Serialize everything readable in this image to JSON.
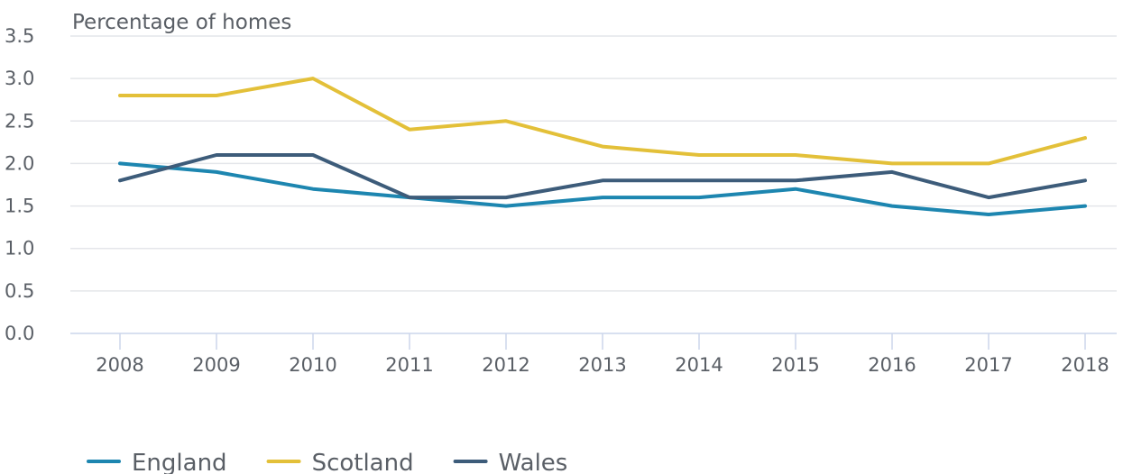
{
  "chart_data": {
    "type": "line",
    "title": "",
    "xlabel": "",
    "ylabel": "Percentage of homes",
    "x": [
      "2008",
      "2009",
      "2010",
      "2011",
      "2012",
      "2013",
      "2014",
      "2015",
      "2016",
      "2017",
      "2018"
    ],
    "ylim": [
      0,
      3.5
    ],
    "yticks": [
      "0.0",
      "0.5",
      "1.0",
      "1.5",
      "2.0",
      "2.5",
      "3.0",
      "3.5"
    ],
    "grid": true,
    "legend_position": "bottom-left",
    "series": [
      {
        "name": "England",
        "color": "#1d86b0",
        "values": [
          2.0,
          1.9,
          1.7,
          1.6,
          1.5,
          1.6,
          1.6,
          1.7,
          1.5,
          1.4,
          1.5
        ]
      },
      {
        "name": "Scotland",
        "color": "#e3c039",
        "values": [
          2.8,
          2.8,
          3.0,
          2.4,
          2.5,
          2.2,
          2.1,
          2.1,
          2.0,
          2.0,
          2.3
        ]
      },
      {
        "name": "Wales",
        "color": "#3d5c7a",
        "values": [
          1.8,
          2.1,
          2.1,
          1.6,
          1.6,
          1.8,
          1.8,
          1.8,
          1.9,
          1.6,
          1.8
        ]
      }
    ]
  }
}
